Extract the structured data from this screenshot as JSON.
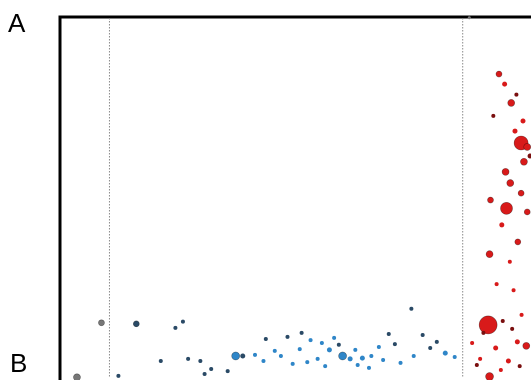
{
  "panel_labels": {
    "a": "A",
    "b": "B"
  },
  "colors": {
    "frame": "#000000",
    "guide": "#8a8a8a",
    "blue": "#2f86c8",
    "blue_dark": "#2a4a66",
    "red": "#d81a1a",
    "red_dark": "#7a0f0f",
    "grey": "#777777"
  },
  "chart_data": {
    "type": "scatter",
    "title": "",
    "xlabel": "",
    "ylabel": "",
    "xlim": [
      0,
      100
    ],
    "ylim": [
      0,
      100
    ],
    "grid": false,
    "guides_x": [
      10.5,
      85.5
    ],
    "series": [
      {
        "color_key": "blue",
        "points": [
          {
            "x": 37.3,
            "y": 6.1,
            "s": 4
          },
          {
            "x": 60.0,
            "y": 6.1,
            "s": 4
          },
          {
            "x": 57.2,
            "y": 7.8,
            "s": 2.5
          },
          {
            "x": 58.2,
            "y": 11.1,
            "s": 2
          },
          {
            "x": 55.6,
            "y": 9.7,
            "s": 2
          },
          {
            "x": 53.2,
            "y": 10.5,
            "s": 2
          },
          {
            "x": 61.6,
            "y": 5.3,
            "s": 2.5
          },
          {
            "x": 62.7,
            "y": 7.8,
            "s": 2
          },
          {
            "x": 64.2,
            "y": 5.5,
            "s": 2.5
          },
          {
            "x": 66.1,
            "y": 6.1,
            "s": 2
          },
          {
            "x": 67.7,
            "y": 8.6,
            "s": 2
          },
          {
            "x": 68.6,
            "y": 5.0,
            "s": 2
          },
          {
            "x": 81.8,
            "y": 6.9,
            "s": 2.5
          },
          {
            "x": 83.8,
            "y": 5.8,
            "s": 2
          },
          {
            "x": 46.9,
            "y": 6.1,
            "s": 2
          },
          {
            "x": 45.6,
            "y": 7.5,
            "s": 2
          },
          {
            "x": 49.4,
            "y": 3.9,
            "s": 2
          },
          {
            "x": 50.9,
            "y": 8.0,
            "s": 2
          },
          {
            "x": 52.5,
            "y": 4.4,
            "s": 2
          },
          {
            "x": 54.7,
            "y": 5.3,
            "s": 2
          },
          {
            "x": 56.3,
            "y": 3.3,
            "s": 2
          },
          {
            "x": 63.2,
            "y": 3.6,
            "s": 2
          },
          {
            "x": 65.6,
            "y": 2.8,
            "s": 2
          },
          {
            "x": 41.4,
            "y": 6.4,
            "s": 2
          },
          {
            "x": 43.2,
            "y": 4.7,
            "s": 2
          },
          {
            "x": 72.3,
            "y": 4.2,
            "s": 2
          },
          {
            "x": 75.1,
            "y": 6.1,
            "s": 2
          }
        ]
      },
      {
        "color_key": "blue_dark",
        "points": [
          {
            "x": 16.2,
            "y": 15.0,
            "s": 3
          },
          {
            "x": 26.1,
            "y": 15.6,
            "s": 2
          },
          {
            "x": 24.5,
            "y": 13.9,
            "s": 2
          },
          {
            "x": 74.6,
            "y": 19.2,
            "s": 2
          },
          {
            "x": 38.8,
            "y": 6.1,
            "s": 2.5
          },
          {
            "x": 27.2,
            "y": 5.3,
            "s": 2
          },
          {
            "x": 29.8,
            "y": 4.7,
            "s": 2
          },
          {
            "x": 21.4,
            "y": 4.7,
            "s": 2
          },
          {
            "x": 32.1,
            "y": 2.5,
            "s": 2
          },
          {
            "x": 35.6,
            "y": 1.9,
            "s": 2
          },
          {
            "x": 69.8,
            "y": 12.2,
            "s": 2
          },
          {
            "x": 71.1,
            "y": 9.4,
            "s": 2
          },
          {
            "x": 77.0,
            "y": 11.9,
            "s": 2
          },
          {
            "x": 78.6,
            "y": 8.3,
            "s": 2
          },
          {
            "x": 80.0,
            "y": 10.0,
            "s": 2
          },
          {
            "x": 43.7,
            "y": 10.8,
            "s": 2
          },
          {
            "x": 48.3,
            "y": 11.4,
            "s": 2
          },
          {
            "x": 51.3,
            "y": 12.5,
            "s": 2
          },
          {
            "x": 59.2,
            "y": 9.2,
            "s": 2
          },
          {
            "x": 12.4,
            "y": 0.6,
            "s": 2
          },
          {
            "x": 30.7,
            "y": 1.1,
            "s": 2
          }
        ]
      },
      {
        "color_key": "grey",
        "points": [
          {
            "x": 8.8,
            "y": 15.3,
            "s": 3
          },
          {
            "x": 3.6,
            "y": 0.2,
            "s": 3.5
          },
          {
            "x": 86.9,
            "y": 99.8,
            "s": 1.5
          }
        ]
      },
      {
        "color_key": "red",
        "points": [
          {
            "x": 90.9,
            "y": 14.7,
            "s": 9
          },
          {
            "x": 97.9,
            "y": 65.1,
            "s": 7
          },
          {
            "x": 94.8,
            "y": 47.0,
            "s": 6
          },
          {
            "x": 95.8,
            "y": 76.2,
            "s": 3.5
          },
          {
            "x": 99.2,
            "y": 64.0,
            "s": 3.5
          },
          {
            "x": 94.6,
            "y": 57.1,
            "s": 3.5
          },
          {
            "x": 95.6,
            "y": 54.0,
            "s": 3.5
          },
          {
            "x": 98.5,
            "y": 59.9,
            "s": 3.5
          },
          {
            "x": 97.9,
            "y": 51.2,
            "s": 3
          },
          {
            "x": 91.4,
            "y": 49.3,
            "s": 3
          },
          {
            "x": 97.2,
            "y": 37.7,
            "s": 3
          },
          {
            "x": 99.2,
            "y": 46.0,
            "s": 3
          },
          {
            "x": 91.2,
            "y": 34.3,
            "s": 3.5
          },
          {
            "x": 93.2,
            "y": 84.2,
            "s": 3
          },
          {
            "x": 94.4,
            "y": 81.4,
            "s": 2.5
          },
          {
            "x": 99.0,
            "y": 8.9,
            "s": 3.5
          },
          {
            "x": 97.1,
            "y": 10.0,
            "s": 2.5
          },
          {
            "x": 91.2,
            "y": 0.4,
            "s": 4
          },
          {
            "x": 92.5,
            "y": 8.3,
            "s": 2.5
          },
          {
            "x": 95.2,
            "y": 4.7,
            "s": 2.5
          },
          {
            "x": 89.2,
            "y": 5.3,
            "s": 2
          },
          {
            "x": 87.5,
            "y": 9.7,
            "s": 2
          },
          {
            "x": 98.3,
            "y": 71.2,
            "s": 2.5
          },
          {
            "x": 96.6,
            "y": 68.4,
            "s": 2.5
          },
          {
            "x": 93.8,
            "y": 42.4,
            "s": 2.5
          },
          {
            "x": 95.5,
            "y": 32.2,
            "s": 2
          },
          {
            "x": 92.7,
            "y": 26.0,
            "s": 2
          },
          {
            "x": 96.3,
            "y": 24.3,
            "s": 2
          },
          {
            "x": 98.0,
            "y": 17.5,
            "s": 2
          },
          {
            "x": 93.6,
            "y": 2.2,
            "s": 2
          }
        ]
      },
      {
        "color_key": "red_dark",
        "points": [
          {
            "x": 96.9,
            "y": 78.5,
            "s": 2
          },
          {
            "x": 99.8,
            "y": 61.5,
            "s": 2.5
          },
          {
            "x": 92.0,
            "y": 72.6,
            "s": 2
          },
          {
            "x": 89.9,
            "y": 12.5,
            "s": 2
          },
          {
            "x": 94.0,
            "y": 15.8,
            "s": 2
          },
          {
            "x": 96.0,
            "y": 13.6,
            "s": 2
          },
          {
            "x": 88.5,
            "y": 3.6,
            "s": 2
          },
          {
            "x": 97.6,
            "y": 3.3,
            "s": 2
          }
        ]
      }
    ]
  }
}
